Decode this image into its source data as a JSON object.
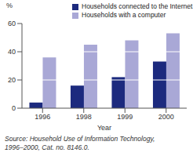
{
  "chart_data": {
    "type": "bar",
    "categories": [
      "1996",
      "1998",
      "1999",
      "2000"
    ],
    "series": [
      {
        "name": "Households connected to the Internet",
        "color": "#1c2a7e",
        "values": [
          4,
          16,
          22,
          33
        ]
      },
      {
        "name": "Households with a computer",
        "color": "#a9a8d6",
        "values": [
          36,
          45,
          48,
          53
        ]
      }
    ],
    "y_label": "%",
    "x_label": "Year",
    "source": "Source: Household Use of Information Technology, 1996–2000, Cat. no. 8146.0.",
    "ylim": [
      0,
      60
    ],
    "yticks": [
      0,
      20,
      40,
      60
    ],
    "grid": true,
    "legend": "top"
  }
}
